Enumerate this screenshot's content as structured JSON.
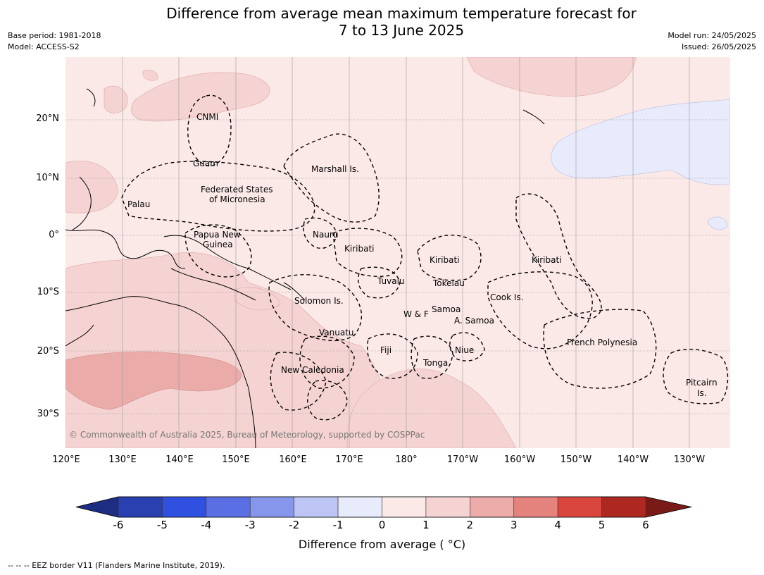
{
  "title_line1": "Difference from average mean maximum temperature forecast for",
  "title_line2": "7 to 13 June 2025",
  "base_period": "Base period: 1981-2018",
  "model": "Model: ACCESS-S2",
  "model_run": "Model run: 24/05/2025",
  "issued": "Issued: 26/05/2025",
  "lat_labels": [
    "20°N",
    "10°N",
    "0°",
    "10°S",
    "20°S",
    "30°S"
  ],
  "lon_labels": [
    "120°E",
    "130°E",
    "140°E",
    "150°E",
    "160°E",
    "170°E",
    "180°",
    "170°W",
    "160°W",
    "150°W",
    "140°W",
    "130°W"
  ],
  "regions": {
    "cnmi": "CNMI",
    "guam": "Guam",
    "marshall": "Marshall Is.",
    "fsm_line1": "Federated States",
    "fsm_line2": "of Micronesia",
    "palau": "Palau",
    "png_line1": "Papua New",
    "png_line2": "Guinea",
    "nauru": "Nauru",
    "kiribati_w": "Kiribati",
    "kiribati_c": "Kiribati",
    "kiribati_e": "Kiribati",
    "tuvalu": "Tuvalu",
    "tokelau": "Tokelau",
    "cook": "Cook Is.",
    "solomon": "Solomon Is.",
    "samoa": "Samoa",
    "wf": "W & F",
    "asamoa": "A. Samoa",
    "vanuatu": "Vanuatu",
    "fiji": "Fiji",
    "niue": "Niue",
    "tonga": "Tonga",
    "french_poly": "French Polynesia",
    "newcal": "New Caledonia",
    "pitcairn_line1": "Pitcairn",
    "pitcairn_line2": "Is."
  },
  "copyright": "© Commonwealth of Australia 2025, Bureau of Meteorology, supported by COSPPac",
  "colorbar": {
    "ticks": [
      "-6",
      "-5",
      "-4",
      "-3",
      "-2",
      "-1",
      "0",
      "1",
      "2",
      "3",
      "4",
      "5",
      "6"
    ],
    "colors": [
      "#1c2d82",
      "#2a3fb0",
      "#3050df",
      "#5a6fe3",
      "#8696ea",
      "#bcc5f3",
      "#e7ebfb",
      "#fbe9e8",
      "#f5d3d2",
      "#ebaba9",
      "#e4827d",
      "#d8463e",
      "#ac2820",
      "#7a1a17"
    ],
    "label": "Difference from average ( °C)"
  },
  "footnote": "--  --  -- EEZ border V11 (Flanders Marine Institute, 2019)."
}
